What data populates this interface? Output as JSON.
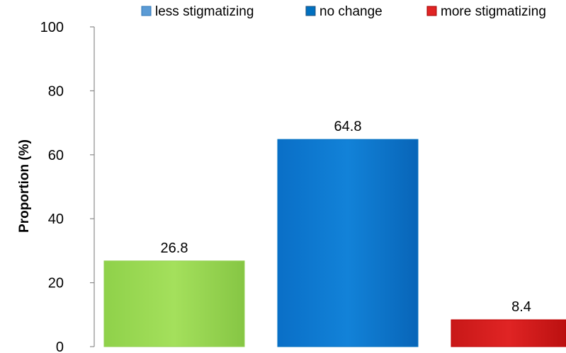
{
  "chart_data": {
    "type": "bar",
    "categories": [
      "less stigmatizing",
      "no change",
      "more stigmatizing"
    ],
    "values": [
      26.8,
      64.8,
      8.4
    ],
    "data_labels": [
      "26.8",
      "64.8",
      "8.4"
    ],
    "colors": [
      "#92d050",
      "#0070c0",
      "#c00000"
    ],
    "title": "",
    "xlabel": "",
    "ylabel": "Proportion  (%)",
    "ylim": [
      0,
      100
    ],
    "yticks": [
      "0",
      "20",
      "40",
      "60",
      "80",
      "100"
    ],
    "grid": false,
    "legend": {
      "placement": "top",
      "entries": [
        "less stigmatizing",
        "no change",
        "more stigmatizing"
      ]
    }
  }
}
